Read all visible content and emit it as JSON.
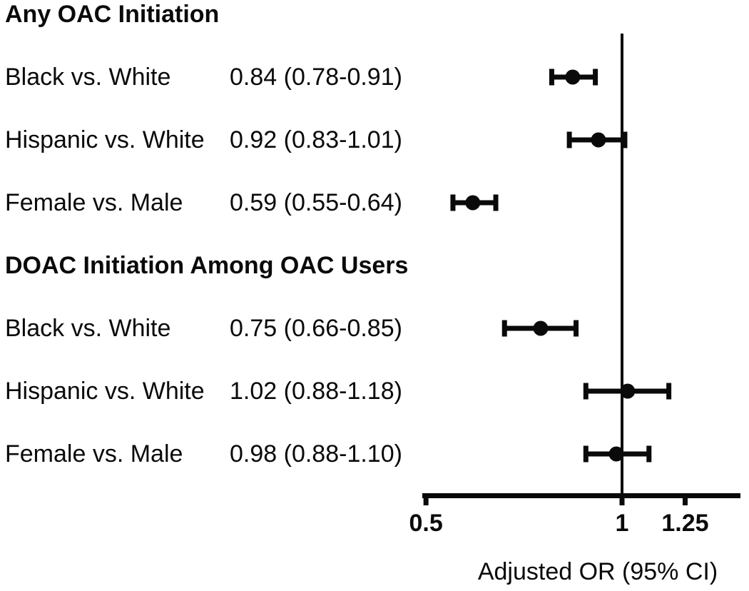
{
  "figure": {
    "background": "#ffffff",
    "ink": "#0a0a0a"
  },
  "chart_data": {
    "type": "forest",
    "xlabel": "Adjusted OR (95% CI)",
    "x_scale": "log",
    "x_ticks": [
      0.5,
      1,
      1.25
    ],
    "x_tick_labels": [
      "0.5",
      "1",
      "1.25"
    ],
    "x_range": [
      0.49,
      1.53
    ],
    "reference_line": 1,
    "grid": "off",
    "groups": [
      {
        "label": "Any OAC Initiation",
        "rows": [
          {
            "label": "Black vs. White",
            "estimate_text": "0.84 (0.78-0.91)",
            "or": 0.84,
            "ci_low": 0.78,
            "ci_high": 0.91
          },
          {
            "label": "Hispanic vs. White",
            "estimate_text": "0.92 (0.83-1.01)",
            "or": 0.92,
            "ci_low": 0.83,
            "ci_high": 1.01
          },
          {
            "label": "Female vs. Male",
            "estimate_text": "0.59 (0.55-0.64)",
            "or": 0.59,
            "ci_low": 0.55,
            "ci_high": 0.64
          }
        ]
      },
      {
        "label": "DOAC Initiation Among OAC Users",
        "rows": [
          {
            "label": "Black vs. White",
            "estimate_text": "0.75 (0.66-0.85)",
            "or": 0.75,
            "ci_low": 0.66,
            "ci_high": 0.85
          },
          {
            "label": "Hispanic vs. White",
            "estimate_text": "1.02 (0.88-1.18)",
            "or": 1.02,
            "ci_low": 0.88,
            "ci_high": 1.18
          },
          {
            "label": "Female vs. Male",
            "estimate_text": "0.98 (0.88-1.10)",
            "or": 0.98,
            "ci_low": 0.88,
            "ci_high": 1.1
          }
        ]
      }
    ]
  }
}
